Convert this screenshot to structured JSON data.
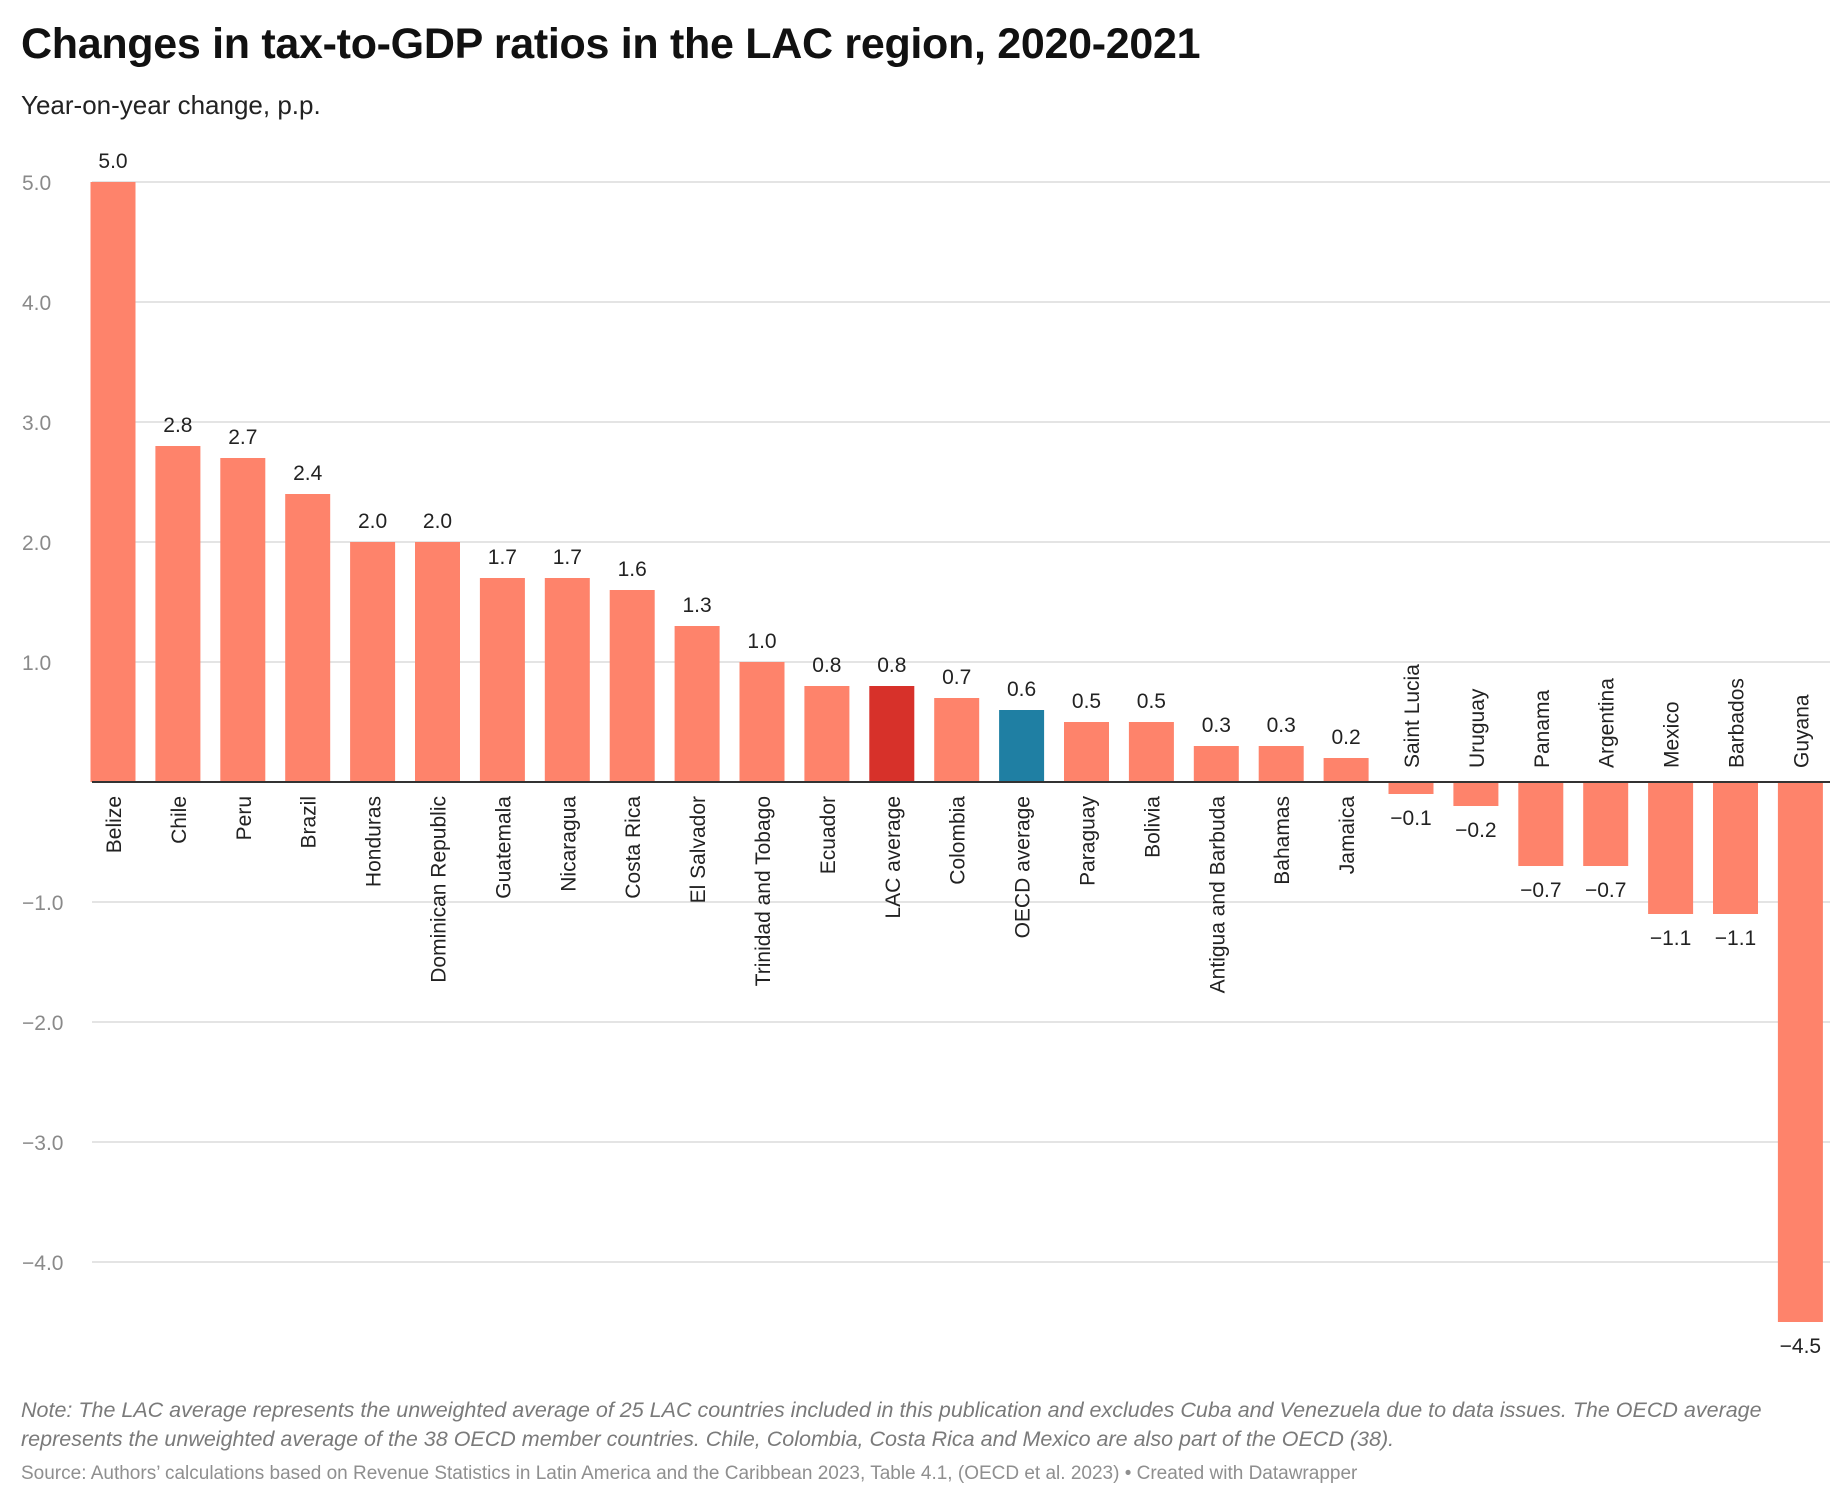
{
  "header": {
    "title": "Changes in tax-to-GDP ratios in the LAC region, 2020-2021",
    "subtitle": "Year-on-year change, p.p."
  },
  "footer": {
    "note": "Note: The LAC average represents the unweighted average of 25 LAC countries included in this publication and excludes Cuba and Venezuela due to data issues. The OECD average represents the unweighted average of the 38 OECD member countries. Chile, Colombia, Costa Rica and Mexico are also part of the OECD (38).",
    "source": "Source: Authors’ calculations based on Revenue Statistics in Latin America and the Caribbean 2023, Table 4.1, (OECD et al. 2023) • Created with Datawrapper"
  },
  "colors": {
    "bar_default": "#fe836b",
    "bar_lac_average": "#d7312a",
    "bar_oecd_average": "#1f7fa3",
    "gridline": "#dcdcdc",
    "baseline": "#333333"
  },
  "chart_data": {
    "type": "bar",
    "title": "Changes in tax-to-GDP ratios in the LAC region, 2020-2021",
    "subtitle": "Year-on-year change, p.p.",
    "xlabel": "",
    "ylabel": "",
    "ylim": [
      -4.5,
      5.0
    ],
    "yticks": [
      5.0,
      4.0,
      3.0,
      2.0,
      1.0,
      -1.0,
      -2.0,
      -3.0,
      -4.0
    ],
    "ytick_labels": [
      "5.0",
      "4.0",
      "3.0",
      "2.0",
      "1.0",
      "−1.0",
      "−2.0",
      "−3.0",
      "−4.0"
    ],
    "grid": true,
    "legend": "none",
    "categories": [
      "Belize",
      "Chile",
      "Peru",
      "Brazil",
      "Honduras",
      "Dominican Republic",
      "Guatemala",
      "Nicaragua",
      "Costa Rica",
      "El Salvador",
      "Trinidad and Tobago",
      "Ecuador",
      "LAC average",
      "Colombia",
      "OECD average",
      "Paraguay",
      "Bolivia",
      "Antigua and Barbuda",
      "Bahamas",
      "Jamaica",
      "Saint Lucia",
      "Uruguay",
      "Panama",
      "Argentina",
      "Mexico",
      "Barbados",
      "Guyana"
    ],
    "values": [
      5.0,
      2.8,
      2.7,
      2.4,
      2.0,
      2.0,
      1.7,
      1.7,
      1.6,
      1.3,
      1.0,
      0.8,
      0.8,
      0.7,
      0.6,
      0.5,
      0.5,
      0.3,
      0.3,
      0.2,
      -0.1,
      -0.2,
      -0.7,
      -0.7,
      -1.1,
      -1.1,
      -4.5
    ],
    "value_labels": [
      "5.0",
      "2.8",
      "2.7",
      "2.4",
      "2.0",
      "2.0",
      "1.7",
      "1.7",
      "1.6",
      "1.3",
      "1.0",
      "0.8",
      "0.8",
      "0.7",
      "0.6",
      "0.5",
      "0.5",
      "0.3",
      "0.3",
      "0.2",
      "−0.1",
      "−0.2",
      "−0.7",
      "−0.7",
      "−1.1",
      "−1.1",
      "−4.5"
    ],
    "highlighted": {
      "LAC average": "#d7312a",
      "OECD average": "#1f7fa3"
    }
  }
}
